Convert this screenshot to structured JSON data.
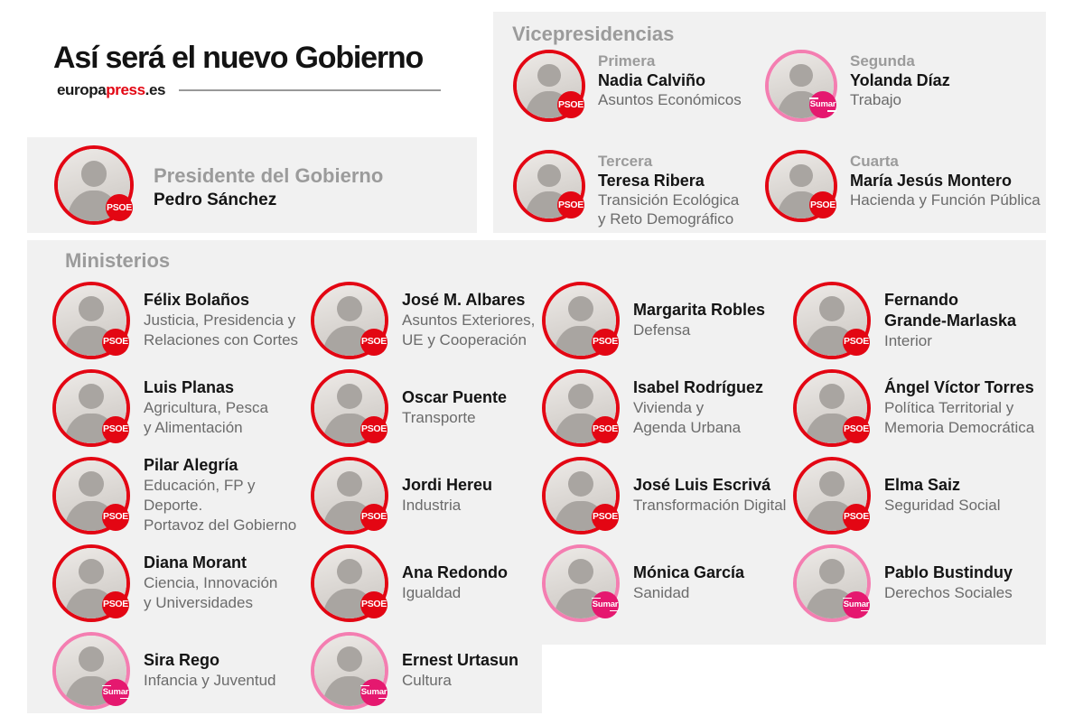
{
  "header": {
    "title": "Así será el nuevo Gobierno",
    "brand_black1": "europa",
    "brand_red": "press",
    "brand_black2": ".es"
  },
  "colors": {
    "psoe": "#e30613",
    "sumar_badge": "#e5186f",
    "sumar_ring": "#f47eb1",
    "panel_bg": "#f1f1f1",
    "heading_gray": "#9b9b9b",
    "name_color": "#141414",
    "role_color": "#6b6b6b",
    "brand_red": "#e30613"
  },
  "president": {
    "section_title": "Presidente del Gobierno",
    "name": "Pedro Sánchez",
    "party": "PSOE"
  },
  "vicepresidencias": {
    "heading": "Vicepresidencias",
    "items": [
      {
        "ordinal": "Primera",
        "name": "Nadia Calviño",
        "role": "Asuntos Económicos",
        "party": "PSOE"
      },
      {
        "ordinal": "Segunda",
        "name": "Yolanda Díaz",
        "role": "Trabajo",
        "party": "Sumar"
      },
      {
        "ordinal": "Tercera",
        "name": "Teresa Ribera",
        "role": "Transición Ecológica\ny Reto Demográfico",
        "party": "PSOE"
      },
      {
        "ordinal": "Cuarta",
        "name": "María Jesús Montero",
        "role": "Hacienda y Función Pública",
        "party": "PSOE"
      }
    ]
  },
  "ministerios": {
    "heading": "Ministerios",
    "items": [
      {
        "name": "Félix Bolaños",
        "role": "Justicia, Presidencia y\nRelaciones con Cortes",
        "party": "PSOE"
      },
      {
        "name": "José M. Albares",
        "role": "Asuntos Exteriores,\nUE y Cooperación",
        "party": "PSOE"
      },
      {
        "name": "Margarita Robles",
        "role": "Defensa",
        "party": "PSOE"
      },
      {
        "name": "Fernando\nGrande-Marlaska",
        "role": "Interior",
        "party": "PSOE"
      },
      {
        "name": "Luis Planas",
        "role": "Agricultura, Pesca\ny Alimentación",
        "party": "PSOE"
      },
      {
        "name": "Oscar Puente",
        "role": "Transporte",
        "party": "PSOE"
      },
      {
        "name": "Isabel Rodríguez",
        "role": "Vivienda y\nAgenda Urbana",
        "party": "PSOE"
      },
      {
        "name": "Ángel Víctor Torres",
        "role": "Política Territorial y\nMemoria Democrática",
        "party": "PSOE"
      },
      {
        "name": "Pilar Alegría",
        "role": "Educación, FP y Deporte.\nPortavoz del Gobierno",
        "party": "PSOE"
      },
      {
        "name": "Jordi Hereu",
        "role": "Industria",
        "party": "PSOE"
      },
      {
        "name": "José Luis Escrivá",
        "role": "Transformación Digital",
        "party": "PSOE"
      },
      {
        "name": "Elma Saiz",
        "role": "Seguridad Social",
        "party": "PSOE"
      },
      {
        "name": "Diana Morant",
        "role": "Ciencia, Innovación\ny Universidades",
        "party": "PSOE"
      },
      {
        "name": "Ana Redondo",
        "role": "Igualdad",
        "party": "PSOE"
      },
      {
        "name": "Mónica García",
        "role": "Sanidad",
        "party": "Sumar"
      },
      {
        "name": "Pablo Bustinduy",
        "role": "Derechos Sociales",
        "party": "Sumar"
      },
      {
        "name": "Sira Rego",
        "role": "Infancia y Juventud",
        "party": "Sumar"
      },
      {
        "name": "Ernest Urtasun",
        "role": "Cultura",
        "party": "Sumar"
      }
    ]
  }
}
